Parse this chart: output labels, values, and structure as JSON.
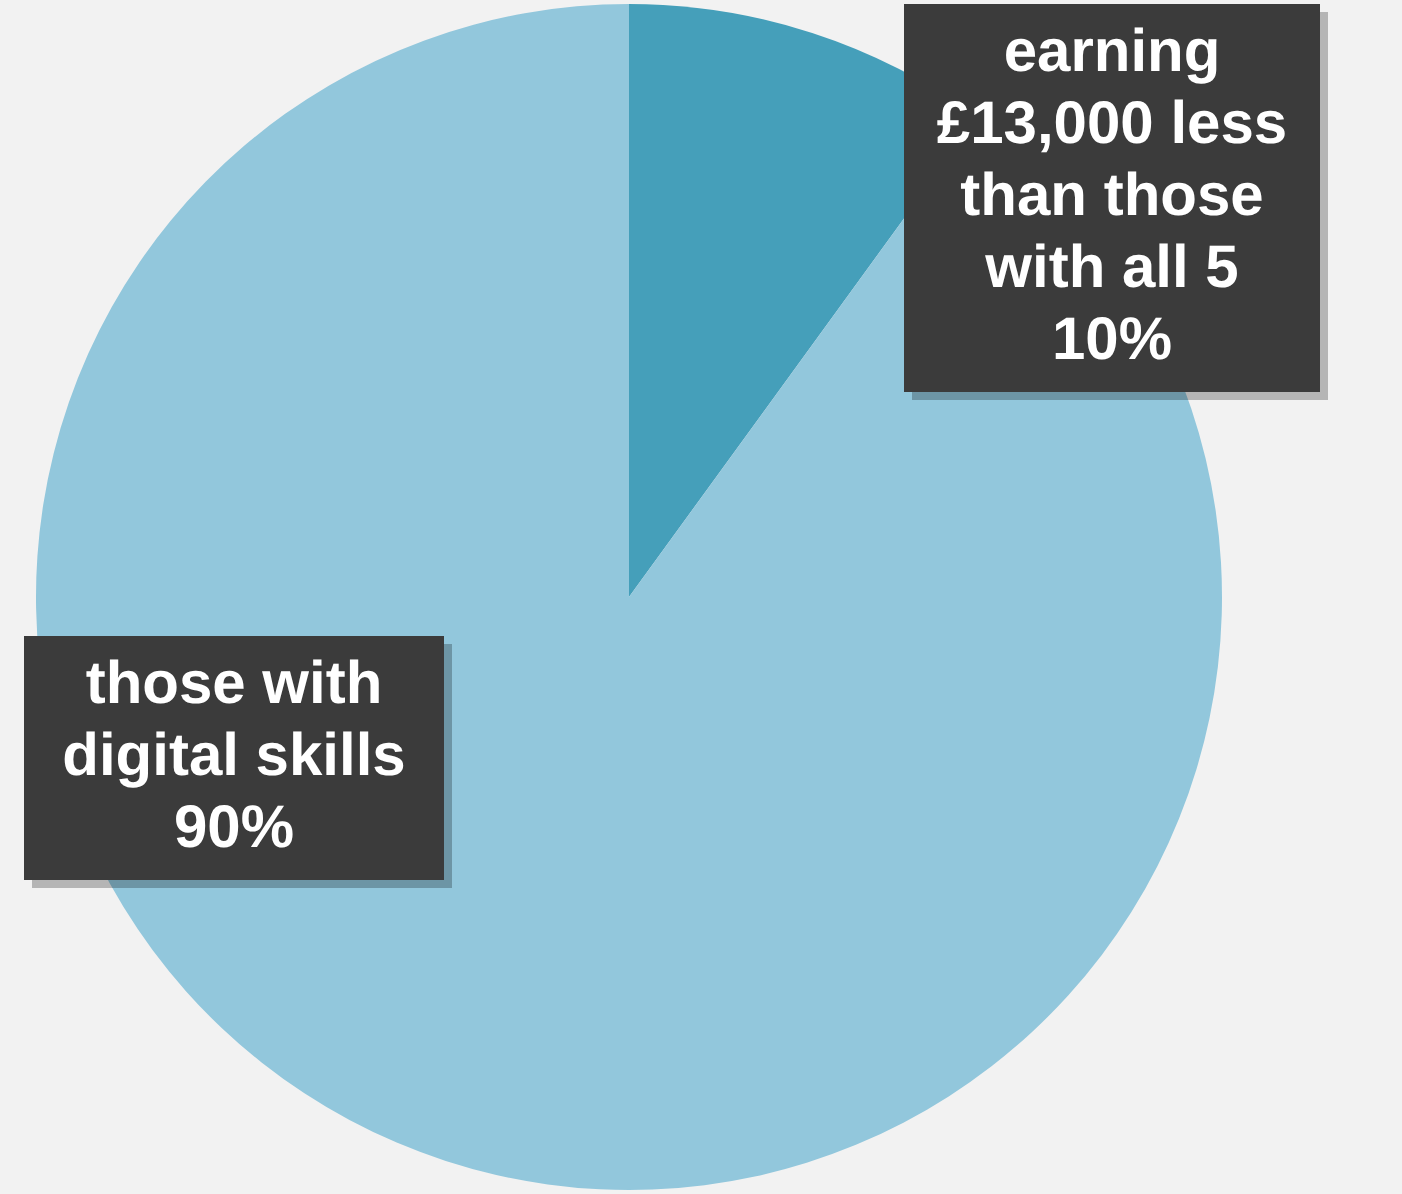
{
  "chart_data": {
    "type": "pie",
    "categories": [
      "earning £13,000 less than those with all 5",
      "those with digital skills"
    ],
    "values": [
      10,
      90
    ],
    "colors": [
      "#459fba",
      "#92c7dc"
    ],
    "value_labels": [
      "10%",
      "90%"
    ],
    "legend": false
  }
}
